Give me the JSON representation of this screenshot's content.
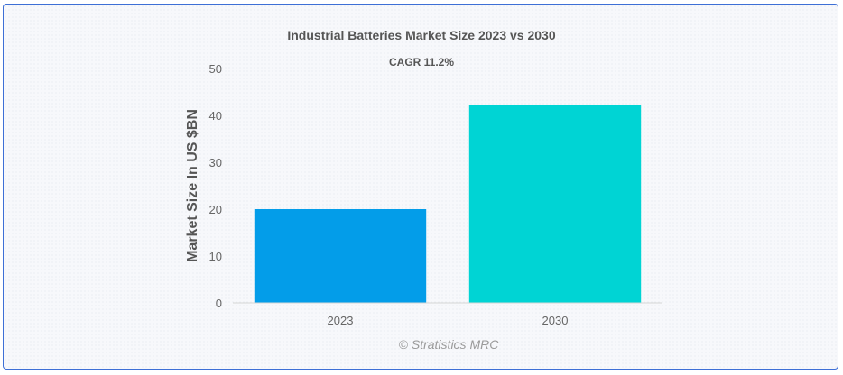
{
  "chart_data": {
    "type": "bar",
    "title": "Industrial Batteries Market Size 2023 vs 2030",
    "subtitle": "CAGR 11.2%",
    "categories": [
      "2023",
      "2030"
    ],
    "values": [
      20,
      42.2
    ],
    "colors": [
      "#039de9",
      "#00d4d4"
    ],
    "xlabel": "",
    "ylabel": "Market Size In US $BN",
    "ylim": [
      0,
      50
    ],
    "yticks": [
      0,
      10,
      20,
      30,
      40,
      50
    ],
    "grid": false,
    "legend": "none"
  },
  "credit": "© Stratistics MRC"
}
